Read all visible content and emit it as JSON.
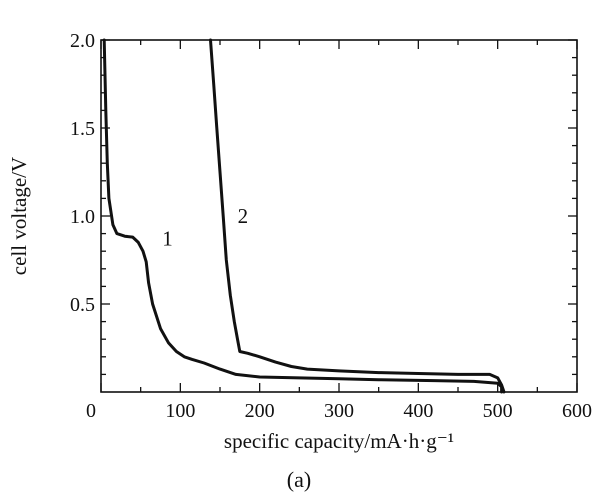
{
  "chart_data": {
    "type": "line",
    "xlabel": "specific capacity/mA·h·g⁻¹",
    "ylabel": "cell voltage/V",
    "caption": "(a)",
    "xlim": [
      0,
      600
    ],
    "ylim": [
      0,
      2.0
    ],
    "x_ticks": [
      0,
      100,
      200,
      300,
      400,
      500,
      600
    ],
    "x_tick_labels": [
      "0",
      "100",
      "200",
      "300",
      "400",
      "500",
      "600"
    ],
    "y_ticks": [
      0.5,
      1.0,
      1.5,
      2.0
    ],
    "y_tick_labels": [
      "0.5",
      "1.0",
      "1.5",
      "2.0"
    ],
    "grid": false,
    "series": [
      {
        "name": "1",
        "points": [
          [
            505,
            0.0
          ],
          [
            505,
            0.03
          ],
          [
            500,
            0.05
          ],
          [
            470,
            0.06
          ],
          [
            420,
            0.065
          ],
          [
            350,
            0.07
          ],
          [
            300,
            0.075
          ],
          [
            250,
            0.08
          ],
          [
            200,
            0.085
          ],
          [
            170,
            0.1
          ],
          [
            150,
            0.13
          ],
          [
            130,
            0.165
          ],
          [
            115,
            0.185
          ],
          [
            105,
            0.2
          ],
          [
            95,
            0.23
          ],
          [
            85,
            0.28
          ],
          [
            75,
            0.36
          ],
          [
            65,
            0.5
          ],
          [
            60,
            0.62
          ],
          [
            57,
            0.74
          ],
          [
            53,
            0.8
          ],
          [
            47,
            0.85
          ],
          [
            40,
            0.88
          ],
          [
            30,
            0.885
          ],
          [
            20,
            0.9
          ],
          [
            15,
            0.95
          ],
          [
            10,
            1.1
          ],
          [
            8,
            1.3
          ],
          [
            6,
            1.6
          ],
          [
            5,
            1.8
          ],
          [
            4,
            2.0
          ]
        ]
      },
      {
        "name": "2",
        "points": [
          [
            508,
            0.0
          ],
          [
            505,
            0.04
          ],
          [
            500,
            0.08
          ],
          [
            490,
            0.1
          ],
          [
            450,
            0.1
          ],
          [
            400,
            0.105
          ],
          [
            350,
            0.11
          ],
          [
            300,
            0.12
          ],
          [
            260,
            0.13
          ],
          [
            240,
            0.145
          ],
          [
            220,
            0.17
          ],
          [
            200,
            0.2
          ],
          [
            185,
            0.22
          ],
          [
            175,
            0.23
          ],
          [
            172,
            0.3
          ],
          [
            168,
            0.4
          ],
          [
            163,
            0.55
          ],
          [
            158,
            0.75
          ],
          [
            154,
            1.0
          ],
          [
            150,
            1.25
          ],
          [
            146,
            1.5
          ],
          [
            142,
            1.75
          ],
          [
            138,
            2.0
          ]
        ]
      }
    ]
  }
}
